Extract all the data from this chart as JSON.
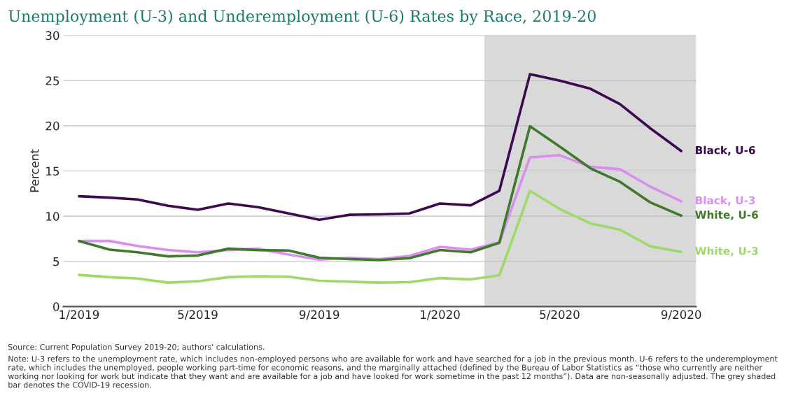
{
  "chart_data": {
    "type": "line",
    "title": "Unemployment (U-3) and Underemployment (U-6) Rates by Race, 2019-20",
    "ylabel": "Percent",
    "x": [
      "2019-01",
      "2019-02",
      "2019-03",
      "2019-04",
      "2019-05",
      "2019-06",
      "2019-07",
      "2019-08",
      "2019-09",
      "2019-10",
      "2019-11",
      "2019-12",
      "2020-01",
      "2020-02",
      "2020-03",
      "2020-04",
      "2020-05",
      "2020-06",
      "2020-07",
      "2020-08",
      "2020-09"
    ],
    "series": [
      {
        "name": "Black, U-6",
        "color": "#3d0a4f",
        "values": [
          12.2,
          12.05,
          11.85,
          11.15,
          10.7,
          11.4,
          11.0,
          10.3,
          9.6,
          10.15,
          10.2,
          10.3,
          11.4,
          11.2,
          12.8,
          25.7,
          25.0,
          24.1,
          22.4,
          19.7,
          17.2
        ]
      },
      {
        "name": "Black, U-3",
        "color": "#d98ef0",
        "values": [
          7.25,
          7.25,
          6.7,
          6.25,
          6.0,
          6.25,
          6.4,
          5.75,
          5.2,
          5.4,
          5.25,
          5.6,
          6.6,
          6.3,
          7.1,
          16.5,
          16.75,
          15.45,
          15.2,
          13.25,
          11.65
        ]
      },
      {
        "name": "White, U-6",
        "color": "#3f7a2a",
        "values": [
          7.25,
          6.3,
          6.0,
          5.55,
          5.65,
          6.4,
          6.25,
          6.2,
          5.4,
          5.25,
          5.15,
          5.35,
          6.25,
          6.0,
          7.05,
          19.95,
          17.7,
          15.3,
          13.8,
          11.5,
          10.05
        ]
      },
      {
        "name": "White, U-3",
        "color": "#9fd96a",
        "values": [
          3.5,
          3.25,
          3.1,
          2.65,
          2.8,
          3.25,
          3.35,
          3.3,
          2.85,
          2.75,
          2.65,
          2.7,
          3.15,
          3.0,
          3.45,
          12.8,
          10.8,
          9.2,
          8.5,
          6.65,
          6.05
        ]
      }
    ],
    "xlim": [
      "2018-12-16",
      "2020-09-16"
    ],
    "xticks": [
      {
        "value": "2019-01",
        "label": "1/2019"
      },
      {
        "value": "2019-05",
        "label": "5/2019"
      },
      {
        "value": "2019-09",
        "label": "9/2019"
      },
      {
        "value": "2020-01",
        "label": "1/2020"
      },
      {
        "value": "2020-05",
        "label": "5/2020"
      },
      {
        "value": "2020-09",
        "label": "9/2020"
      }
    ],
    "ylim": [
      0,
      30
    ],
    "yticks": [
      0,
      5,
      10,
      15,
      20,
      25,
      30
    ],
    "grid": "y",
    "bands": [
      {
        "axis": "x",
        "from": "2020-02-15",
        "to": "2020-09-16",
        "color": "#d9d9d9"
      }
    ],
    "annotations": [
      "Source: Current Population Survey 2019-20; authors' calculations.",
      "Note: U-3 refers to the unemployment rate, which includes non-employed persons who are available for work and have searched for a job in the previous month. U-6 refers to the underemployment rate, which includes the unemployed, people working part-time for economic reasons, and the marginally attached (defined by the Bureau of Labor Statistics as “those who currently are neither working nor looking for work but indicate that they want and are available for a job and have looked for work sometime in the past 12 months”). Data are non-seasonally adjusted. The grey shaded bar denotes the COVID-19 recession."
    ],
    "line_style": "solid"
  }
}
